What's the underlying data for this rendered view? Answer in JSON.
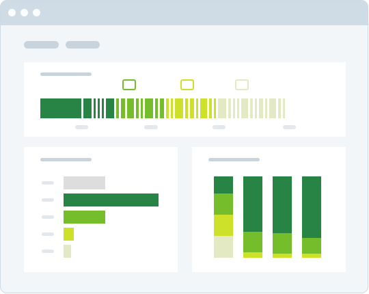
{
  "window": {
    "traffic_lights": [
      "dot-1",
      "dot-2",
      "dot-3"
    ],
    "tabs": [
      "tab-1",
      "tab-2"
    ]
  },
  "colors": {
    "dark_green": "#278445",
    "green": "#76bd2b",
    "lime": "#cde02a",
    "pale": "#e3e9c3",
    "gray": "#dddddd",
    "titlebar": "#cfdce6",
    "background": "#f3f6f9"
  },
  "distribution_bar": {
    "legend": [
      {
        "color": "#76bd2b"
      },
      {
        "color": "#cde02a"
      },
      {
        "color": "#e3e9c3"
      }
    ],
    "groups": [
      {
        "color": "#278445",
        "widths": [
          60,
          12,
          3,
          3,
          3,
          12
        ]
      },
      {
        "color": "#76bd2b",
        "widths": [
          4,
          6,
          10,
          4,
          3,
          12,
          4,
          6
        ]
      },
      {
        "color": "#cde02a",
        "widths": [
          4,
          3,
          12,
          4,
          6,
          3,
          10,
          4,
          3
        ]
      },
      {
        "color": "#e3e9c3",
        "widths": [
          12,
          4,
          3,
          3,
          10,
          4,
          3,
          6,
          3,
          10,
          4,
          3
        ]
      }
    ]
  },
  "chart_data": [
    {
      "type": "bar",
      "orientation": "horizontal",
      "categories": [
        "",
        "",
        "",
        "",
        ""
      ],
      "values": [
        61,
        139,
        61,
        15,
        11
      ],
      "colors": [
        "#dddddd",
        "#278445",
        "#76bd2b",
        "#cde02a",
        "#e3e9c3"
      ],
      "xlim": [
        0,
        139
      ]
    },
    {
      "type": "bar",
      "stacked": true,
      "categories": [
        "",
        "",
        "",
        ""
      ],
      "series": [
        {
          "color": "#e3e9c3",
          "values": [
            27,
            0,
            0,
            0
          ]
        },
        {
          "color": "#cde02a",
          "values": [
            26,
            7,
            5,
            5
          ]
        },
        {
          "color": "#76bd2b",
          "values": [
            26,
            25,
            25,
            19
          ]
        },
        {
          "color": "#278445",
          "values": [
            21,
            68,
            70,
            76
          ]
        }
      ],
      "ylim": [
        0,
        100
      ]
    }
  ]
}
